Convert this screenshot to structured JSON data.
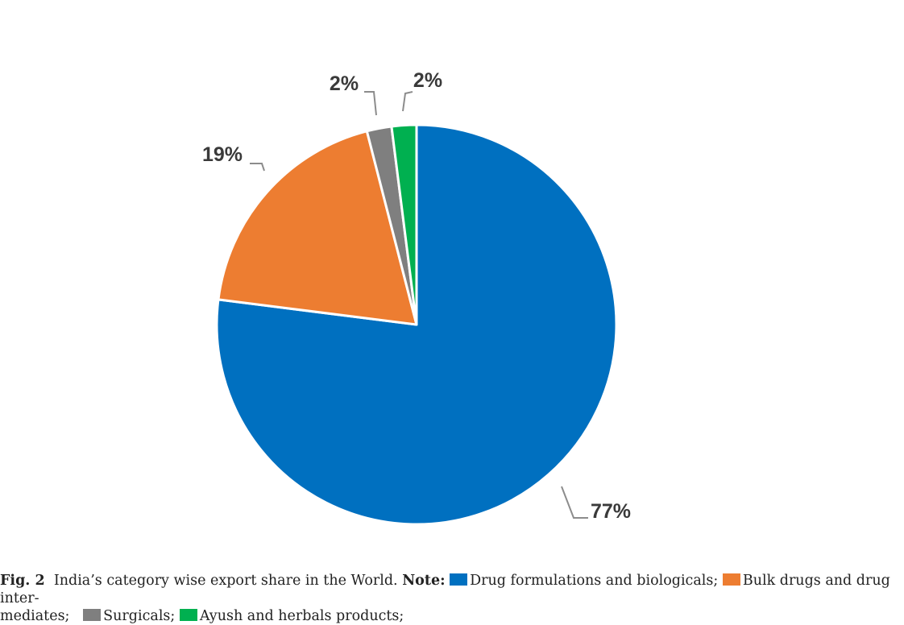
{
  "chart_data": {
    "type": "pie",
    "start_angle_deg": 0,
    "direction": "clockwise",
    "slices": [
      {
        "label": "Drug formulations and biologicals",
        "value": 77,
        "display": "77%",
        "color": "#0070c0"
      },
      {
        "label": "Bulk drugs and drug intermediates",
        "value": 19,
        "display": "19%",
        "color": "#ed7d31"
      },
      {
        "label": "Surgicals",
        "value": 2,
        "display": "2%",
        "color": "#7f7f7f"
      },
      {
        "label": "Ayush and herbals products",
        "value": 2,
        "display": "2%",
        "color": "#00b050"
      }
    ]
  },
  "caption": {
    "fig_label": "Fig. 2",
    "text": "India’s category wise export share in the World.",
    "note_label": "Note:",
    "legend": [
      {
        "text": "Drug formulations and biologicals;",
        "color": "#0070c0"
      },
      {
        "text": "Bulk drugs and drug inter-",
        "color": "#ed7d31"
      },
      {
        "text": "mediates;"
      },
      {
        "text": "Surgicals;",
        "color": "#7f7f7f"
      },
      {
        "text": "Ayush and herbals products;",
        "color": "#00b050"
      }
    ]
  }
}
